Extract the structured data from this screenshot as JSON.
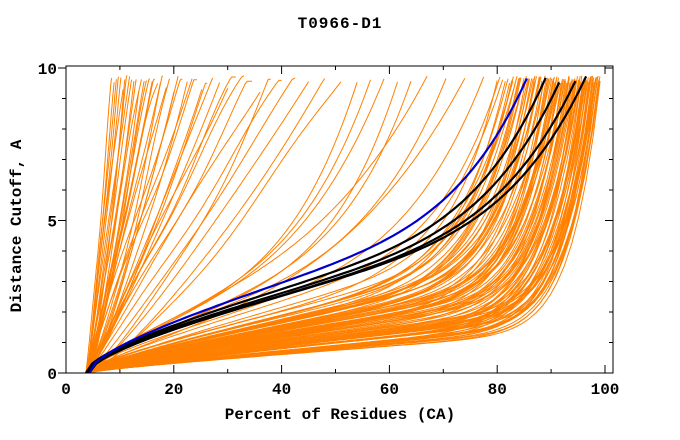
{
  "chart_data": {
    "type": "line",
    "title": "T0966-D1",
    "xlabel": "Percent of Residues (CA)",
    "ylabel": "Distance Cutoff, A",
    "xlim": [
      0,
      100
    ],
    "ylim": [
      0,
      10
    ],
    "x_major_ticks": [
      0,
      20,
      40,
      60,
      80,
      100
    ],
    "x_minor_ticks": [
      10,
      30,
      50,
      70,
      90
    ],
    "y_major_ticks": [
      0,
      5,
      10
    ],
    "y_minor_ticks": [
      1,
      2,
      3,
      4,
      6,
      7,
      8,
      9
    ],
    "grid": false,
    "legend": null,
    "background": "#ffffff",
    "frame_color": "#000000",
    "colors": {
      "models": "#ff8000",
      "reference": "#000000",
      "highlight": "#0000cc"
    },
    "curve_description": "Cumulative curves: each curve starts near (4%, 0 A) and rises monotonically to ~9.6 A at its top_percent (percent of CA residues fit under the distance cutoff).",
    "curve_start_percent": 4,
    "y_top_plotted": 9.6,
    "groups": [
      {
        "name": "orange-steep-fan",
        "color": "models",
        "shape": "steep",
        "top_percents": [
          8.5,
          9,
          9.4,
          9.8,
          10.2,
          10.6,
          11,
          11.4,
          11.8,
          12.2,
          12.6,
          13,
          13.5,
          14,
          14.5,
          15,
          15.5,
          16,
          16.5,
          17,
          17.5,
          18,
          18.6,
          19.2,
          20,
          20.8,
          21.6,
          22.5,
          23.4,
          24.3,
          25.2,
          26.2,
          27.2,
          28.5,
          30,
          31.5,
          33,
          34.5,
          36,
          38,
          40,
          42.5,
          45,
          48,
          51
        ]
      },
      {
        "name": "orange-scattered",
        "color": "models",
        "shape": "mid",
        "top_percents": [
          54,
          56.5,
          59,
          61.5,
          64,
          67,
          70.5,
          74,
          77.5
        ]
      },
      {
        "name": "orange-bundle",
        "color": "models",
        "shape": "sweep",
        "top_percents": [
          80,
          80.5,
          81,
          81.5,
          82,
          82.3,
          82.7,
          83,
          83.4,
          83.7,
          84,
          84.4,
          84.8,
          85,
          85.4,
          85.7,
          86,
          86.4,
          86.7,
          87,
          87.3,
          87.6,
          87.8,
          88,
          88.3,
          88.6,
          88.9,
          89.1,
          89.4,
          89.6,
          89.9,
          90.1,
          90.3,
          90.5,
          90.7,
          90.9,
          91.1,
          91.3,
          91.5,
          91.7,
          91.9,
          92.1,
          92.3,
          92.5,
          92.7,
          92.9,
          93.1,
          93.3,
          93.5,
          93.7,
          93.9,
          94.1,
          94.3,
          94.5,
          94.7,
          94.9,
          95.1,
          95.3,
          95.5,
          95.7,
          95.9,
          96,
          96.2,
          96.3,
          96.5,
          96.6,
          96.8,
          96.9,
          97,
          97.2,
          97.3,
          97.5,
          97.6,
          97.7,
          97.9,
          98,
          98.1,
          98.2,
          98.4,
          98.5,
          98.6,
          98.7,
          98.8,
          98.9,
          99,
          99.1,
          82.9,
          84.2,
          85.9,
          86.9,
          88.1,
          89.3,
          90.4,
          91.4,
          92.4,
          93.4,
          94.4,
          95.4,
          96.4,
          97.4,
          98.3,
          90.6,
          92.6,
          94.6,
          96.1,
          97.8,
          99.05
        ]
      },
      {
        "name": "black-reference-curves",
        "color": "reference",
        "shape": "good",
        "top_percents": [
          89,
          91.5,
          94.5,
          96.5
        ]
      },
      {
        "name": "blue-highlight-curve",
        "color": "highlight",
        "shape": "good2",
        "top_percents": [
          85.5
        ]
      }
    ]
  }
}
